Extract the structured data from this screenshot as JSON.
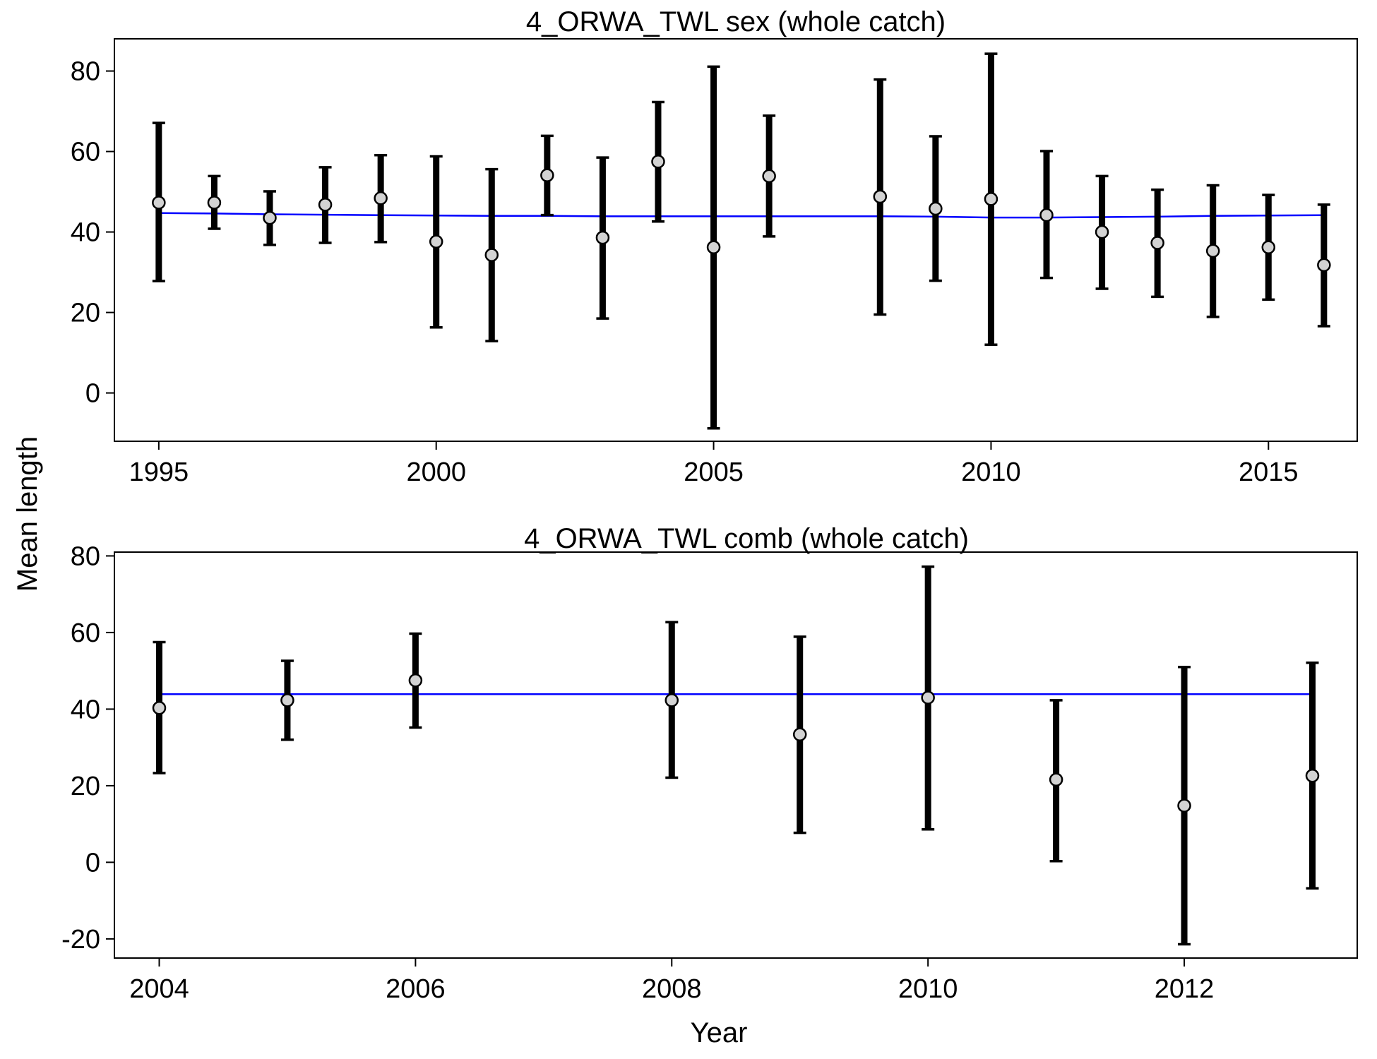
{
  "figure": {
    "ylabel": "Mean length",
    "xlabel": "Year"
  },
  "chart_data": [
    {
      "type": "scatter",
      "title": "4_ORWA_TWL sex (whole catch)",
      "xlabel": "",
      "ylabel": "Mean length",
      "xlim": [
        1994.2,
        2016.6
      ],
      "ylim": [
        -12,
        88
      ],
      "xticks": [
        1995,
        2000,
        2005,
        2010,
        2015
      ],
      "xtick_labels": [
        "1995",
        "2000",
        "2005",
        "2010",
        "2015"
      ],
      "yticks": [
        0,
        20,
        40,
        60,
        80
      ],
      "ytick_labels": [
        "0",
        "20",
        "40",
        "60",
        "80"
      ],
      "grid": false,
      "legend": "none",
      "colors": {
        "points": "#d3d3d3",
        "error_bars": "#000000",
        "expected_line": "#0000ff"
      },
      "series": [
        {
          "kind": "observed",
          "x": [
            1995,
            1996,
            1997,
            1998,
            1999,
            2000,
            2001,
            2002,
            2003,
            2004,
            2005,
            2006,
            2008,
            2009,
            2010,
            2011,
            2012,
            2013,
            2014,
            2015,
            2016
          ],
          "y": [
            47.3,
            47.3,
            43.5,
            46.8,
            48.4,
            37.6,
            34.3,
            54.1,
            38.6,
            57.5,
            36.2,
            53.9,
            48.8,
            45.8,
            48.2,
            44.2,
            40.0,
            37.3,
            35.3,
            36.2,
            31.8
          ],
          "lower": [
            27.8,
            40.8,
            36.8,
            37.3,
            37.5,
            16.3,
            12.9,
            44.2,
            18.5,
            42.6,
            -8.8,
            38.9,
            19.5,
            27.9,
            12.0,
            28.6,
            25.9,
            23.9,
            18.9,
            23.2,
            16.6
          ],
          "upper": [
            67.1,
            53.9,
            50.1,
            56.1,
            59.1,
            58.8,
            55.6,
            63.9,
            58.5,
            72.3,
            81.1,
            68.9,
            77.9,
            63.8,
            84.3,
            60.1,
            53.9,
            50.5,
            51.6,
            49.2,
            46.8
          ]
        },
        {
          "kind": "expected",
          "x": [
            1995,
            1996,
            1997,
            1998,
            1999,
            2000,
            2001,
            2002,
            2003,
            2004,
            2005,
            2006,
            2008,
            2009,
            2010,
            2011,
            2012,
            2013,
            2014,
            2015,
            2016
          ],
          "y": [
            44.7,
            44.6,
            44.4,
            44.3,
            44.2,
            44.1,
            44.0,
            44.0,
            43.9,
            43.9,
            43.9,
            43.9,
            43.9,
            43.8,
            43.6,
            43.6,
            43.7,
            43.8,
            44.0,
            44.1,
            44.2
          ]
        }
      ]
    },
    {
      "type": "scatter",
      "title": "4_ORWA_TWL comb (whole catch)",
      "xlabel": "Year",
      "ylabel": "Mean length",
      "xlim": [
        2003.65,
        2013.35
      ],
      "ylim": [
        -25,
        81
      ],
      "xticks": [
        2004,
        2006,
        2008,
        2010,
        2012
      ],
      "xtick_labels": [
        "2004",
        "2006",
        "2008",
        "2010",
        "2012"
      ],
      "yticks": [
        -20,
        0,
        20,
        40,
        60,
        80
      ],
      "ytick_labels": [
        "-20",
        "0",
        "20",
        "40",
        "60",
        "80"
      ],
      "grid": false,
      "legend": "none",
      "colors": {
        "points": "#d3d3d3",
        "error_bars": "#000000",
        "expected_line": "#0000ff"
      },
      "series": [
        {
          "kind": "observed",
          "x": [
            2004,
            2005,
            2006,
            2008,
            2009,
            2010,
            2011,
            2012,
            2013
          ],
          "y": [
            40.3,
            42.3,
            47.5,
            42.3,
            33.4,
            43.0,
            21.6,
            14.8,
            22.6
          ],
          "lower": [
            23.3,
            32.0,
            35.2,
            22.1,
            7.7,
            8.6,
            0.3,
            -21.4,
            -6.8
          ],
          "upper": [
            57.5,
            52.6,
            59.7,
            62.7,
            58.9,
            77.2,
            42.3,
            51.0,
            52.1
          ]
        },
        {
          "kind": "expected",
          "x": [
            2004,
            2013
          ],
          "y": [
            43.9,
            43.9
          ]
        }
      ]
    }
  ]
}
